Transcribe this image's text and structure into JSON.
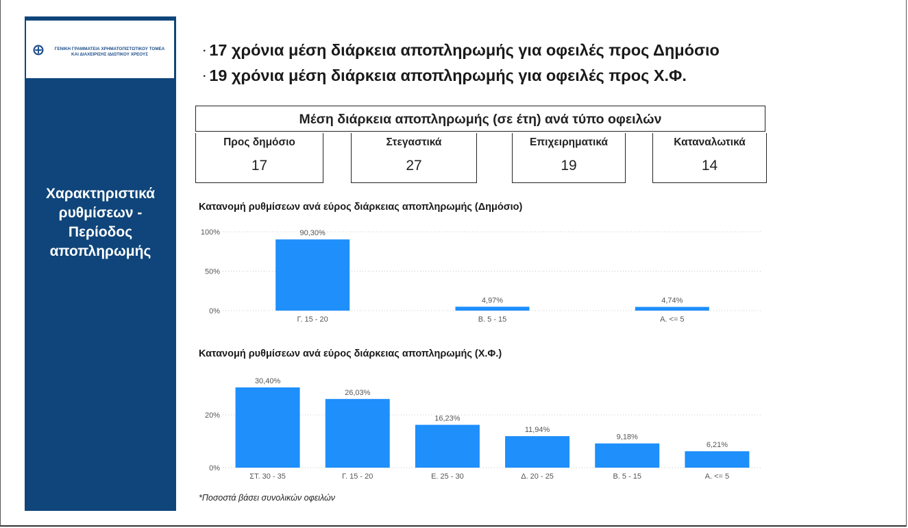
{
  "logo": {
    "line1": "ΓΕΝΙΚΗ ΓΡΑΜΜΑΤΕΙΑ ΧΡΗΜΑΤΟΠΙΣΤΩΤΙΚΟΥ ΤΟΜΕΑ",
    "line2": "ΚΑΙ ΔΙΑΧΕΙΡΙΣΗΣ ΙΔΙΩΤΙΚΟΥ ΧΡΕΟΥΣ",
    "icon": "greek-emblem-icon"
  },
  "sidebar": {
    "title_lines": [
      "Χαρακτηριστικά",
      "ρυθμίσεων -",
      "Περίοδος",
      "αποπληρωμής"
    ]
  },
  "headlines": {
    "bullet": "·",
    "line1": "17 χρόνια μέση διάρκεια αποπληρωμής για οφειλές προς Δημόσιο",
    "line2": "19 χρόνια μέση διάρκεια αποπληρωμής για οφειλές προς Χ.Φ."
  },
  "kpi_section": {
    "title": "Μέση διάρκεια αποπληρωμής (σε έτη) ανά τύπο οφειλών",
    "cards": [
      {
        "label": "Προς δημόσιο",
        "value": "17"
      },
      {
        "label": "Στεγαστικά",
        "value": "27"
      },
      {
        "label": "Επιχειρηματικά",
        "value": "19"
      },
      {
        "label": "Καταναλωτικά",
        "value": "14"
      }
    ]
  },
  "footnote": "*Ποσοστά βάσει συνολικών οφειλών",
  "colors": {
    "bar": "#1e8ffb",
    "sidebar": "#0f457a",
    "grid": "#c8c8c8"
  },
  "chart_data": [
    {
      "type": "bar",
      "title": "Κατανομή ρυθμίσεων ανά εύρος διάρκειας αποπληρωμής (Δημόσιο)",
      "categories": [
        "Γ. 15 - 20",
        "Β. 5 - 15",
        "Α. <= 5"
      ],
      "values": [
        90.3,
        4.97,
        4.74
      ],
      "data_labels": [
        "90,30%",
        "4,97%",
        "4,74%"
      ],
      "ylim": [
        0,
        100
      ],
      "yticks": [
        0,
        50,
        100
      ],
      "ytick_labels": [
        "0%",
        "50%",
        "100%"
      ],
      "grid": true
    },
    {
      "type": "bar",
      "title": "Κατανομή ρυθμίσεων ανά εύρος διάρκειας αποπληρωμής (Χ.Φ.)",
      "categories": [
        "ΣΤ. 30 - 35",
        "Γ. 15 - 20",
        "Ε. 25 - 30",
        "Δ. 20 - 25",
        "Β. 5 - 15",
        "Α. <= 5"
      ],
      "values": [
        30.4,
        26.03,
        16.23,
        11.94,
        9.18,
        6.21
      ],
      "data_labels": [
        "30,40%",
        "26,03%",
        "16,23%",
        "11,94%",
        "9,18%",
        "6,21%"
      ],
      "ylim": [
        0,
        30.4
      ],
      "yticks": [
        0,
        20
      ],
      "ytick_labels": [
        "0%",
        "20%"
      ],
      "grid": true
    }
  ]
}
